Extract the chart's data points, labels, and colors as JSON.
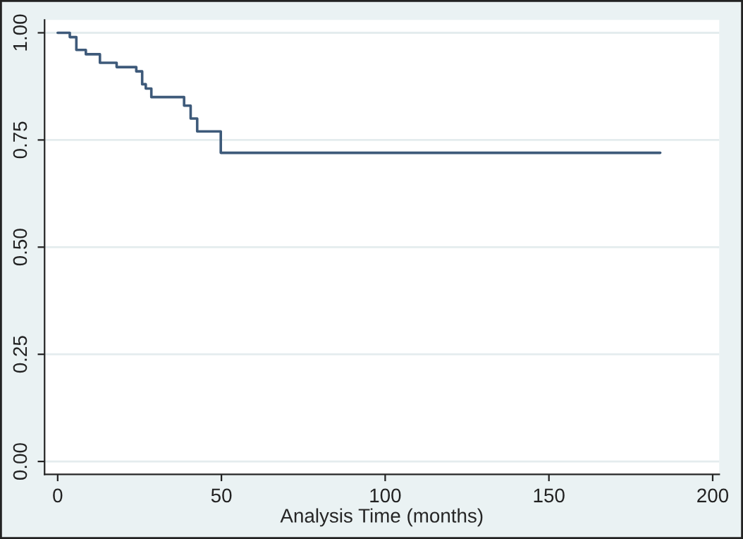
{
  "chart_data": {
    "type": "step",
    "xlabel": "Analysis Time (months)",
    "x": [
      0,
      3.7,
      5.7,
      6.9,
      8.6,
      12.9,
      18.0,
      24.0,
      25.8,
      26.9,
      28.6,
      38.6,
      40.6,
      42.6,
      49.8,
      184
    ],
    "series": [
      {
        "color": "#3e5a7a",
        "values": [
          1.0,
          0.99,
          0.96,
          0.96,
          0.95,
          0.93,
          0.92,
          0.91,
          0.88,
          0.87,
          0.85,
          0.83,
          0.8,
          0.77,
          0.72,
          0.72
        ]
      }
    ],
    "xlim": [
      -4,
      202
    ],
    "xticks": [
      0,
      50,
      100,
      150,
      200
    ],
    "ylim": [
      -0.03,
      1.03
    ],
    "yticks": [
      {
        "value": 0,
        "label": "0.00"
      },
      {
        "value": 0.25,
        "label": "0.25"
      },
      {
        "value": 0.5,
        "label": "0.50"
      },
      {
        "value": 0.75,
        "label": "0.75"
      },
      {
        "value": 1.0,
        "label": "1.00"
      }
    ],
    "grid": "y"
  }
}
